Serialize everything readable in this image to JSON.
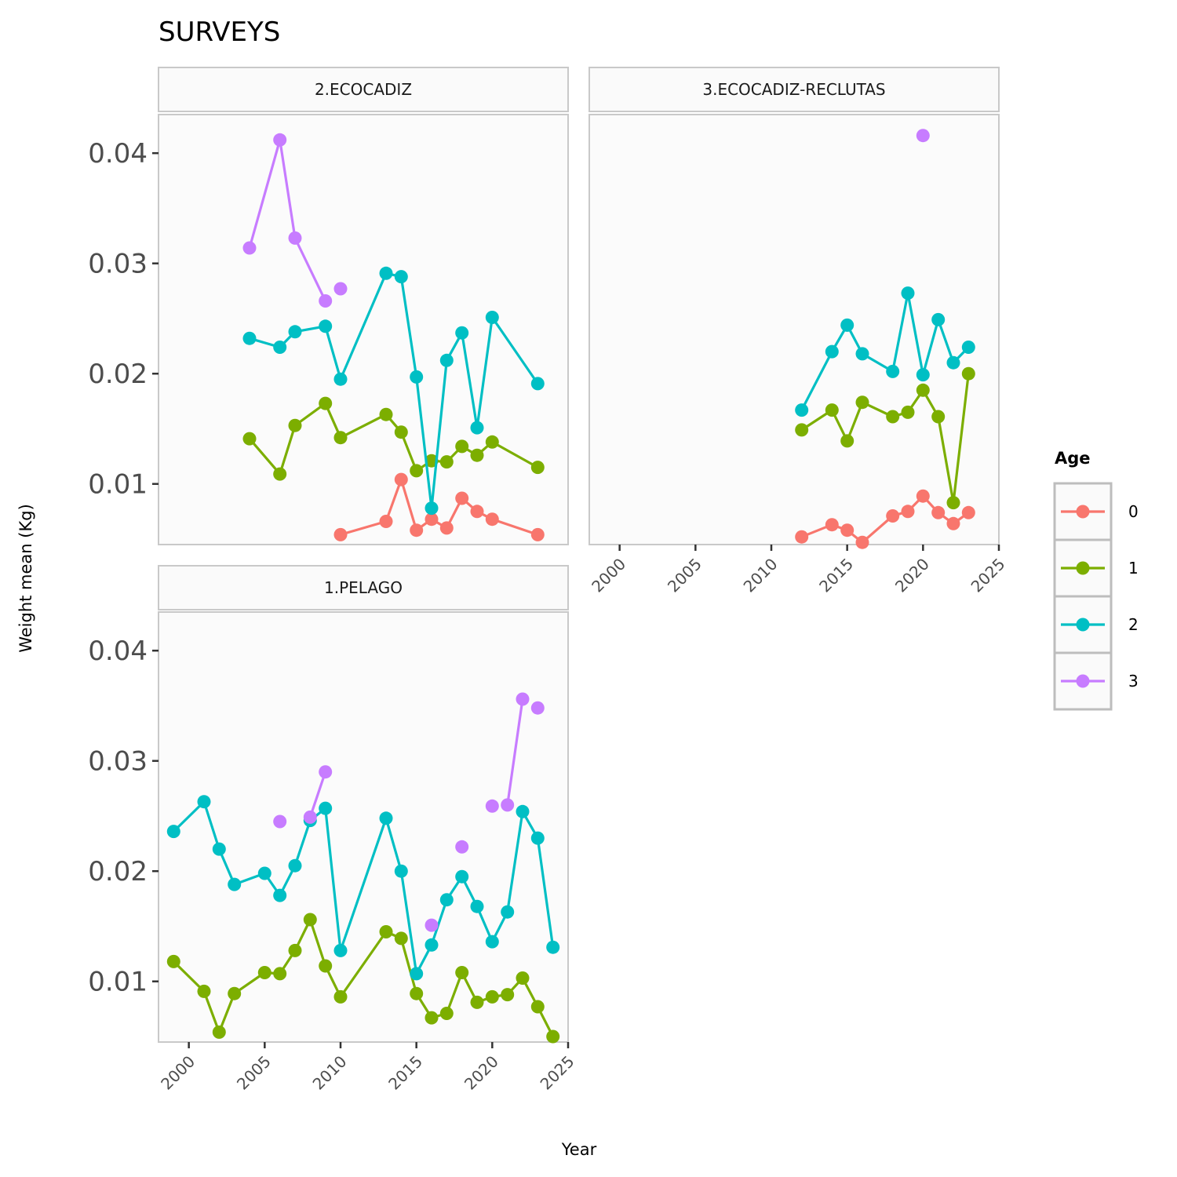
{
  "chart_data": {
    "type": "line",
    "title": "SURVEYS",
    "xlabel": "Year",
    "ylabel": "Weight mean (Kg)",
    "xlim": [
      1998,
      2025
    ],
    "ylim": [
      0.0045,
      0.0435
    ],
    "x_ticks": [
      2000,
      2005,
      2010,
      2015,
      2020,
      2025
    ],
    "y_ticks": [
      0.01,
      0.02,
      0.03,
      0.04
    ],
    "y_tick_labels": [
      "0.01",
      "0.02",
      "0.03",
      "0.04"
    ],
    "grid": false,
    "legend": {
      "title": "Age",
      "placement": "right",
      "entries": [
        {
          "label": "0",
          "color": "#F8766D"
        },
        {
          "label": "1",
          "color": "#7CAE00"
        },
        {
          "label": "2",
          "color": "#00BFC4"
        },
        {
          "label": "3",
          "color": "#C77CFF"
        }
      ]
    },
    "panels": [
      {
        "strip": "2.ECOCADIZ",
        "series": [
          {
            "name": "0",
            "x": [
              2010,
              2013,
              2014,
              2015,
              2016,
              2017,
              2018,
              2019,
              2020,
              2023
            ],
            "y": [
              0.0054,
              0.0066,
              0.0104,
              0.0058,
              0.0068,
              0.006,
              0.0087,
              0.0075,
              0.0068,
              0.0054
            ]
          },
          {
            "name": "1",
            "x": [
              2004,
              2006,
              2007,
              2009,
              2010,
              2013,
              2014,
              2015,
              2016,
              2017,
              2018,
              2019,
              2020,
              2023
            ],
            "y": [
              0.0141,
              0.0109,
              0.0153,
              0.0173,
              0.0142,
              0.0163,
              0.0147,
              0.0112,
              0.0121,
              0.012,
              0.0134,
              0.0126,
              0.0138,
              0.0115
            ]
          },
          {
            "name": "2",
            "x": [
              2004,
              2006,
              2007,
              2009,
              2010,
              2013,
              2014,
              2015,
              2016,
              2017,
              2018,
              2019,
              2020,
              2023
            ],
            "y": [
              0.0232,
              0.0224,
              0.0238,
              0.0243,
              0.0195,
              0.0291,
              0.0288,
              0.0197,
              0.0078,
              0.0212,
              0.0237,
              0.0151,
              0.0251,
              0.0191
            ]
          },
          {
            "name": "3",
            "x": [
              2004,
              2006,
              2007,
              2009,
              2010
            ],
            "y": [
              0.0314,
              0.0412,
              0.0323,
              0.0266,
              0.0277
            ],
            "segments": [
              [
                0,
                3
              ]
            ]
          }
        ]
      },
      {
        "strip": "3.ECOCADIZ-RECLUTAS",
        "series": [
          {
            "name": "0",
            "x": [
              2012,
              2014,
              2015,
              2016,
              2018,
              2019,
              2020,
              2021,
              2022,
              2023
            ],
            "y": [
              0.0052,
              0.0063,
              0.0058,
              0.0047,
              0.0071,
              0.0075,
              0.0089,
              0.0074,
              0.0064,
              0.0074
            ]
          },
          {
            "name": "1",
            "x": [
              2012,
              2014,
              2015,
              2016,
              2018,
              2019,
              2020,
              2021,
              2022,
              2023
            ],
            "y": [
              0.0149,
              0.0167,
              0.0139,
              0.0174,
              0.0161,
              0.0165,
              0.0185,
              0.0161,
              0.0083,
              0.02
            ]
          },
          {
            "name": "2",
            "x": [
              2012,
              2014,
              2015,
              2016,
              2018,
              2019,
              2020,
              2021,
              2022,
              2023
            ],
            "y": [
              0.0167,
              0.022,
              0.0244,
              0.0218,
              0.0202,
              0.0273,
              0.0199,
              0.0249,
              0.021,
              0.0224
            ]
          },
          {
            "name": "3",
            "x": [
              2020
            ],
            "y": [
              0.0416
            ],
            "segments": []
          }
        ]
      },
      {
        "strip": "1.PELAGO",
        "series": [
          {
            "name": "1",
            "x": [
              1999,
              2001,
              2002,
              2003,
              2005,
              2006,
              2007,
              2008,
              2009,
              2010,
              2013,
              2014,
              2015,
              2016,
              2017,
              2018,
              2019,
              2020,
              2021,
              2022,
              2023,
              2024
            ],
            "y": [
              0.0118,
              0.0091,
              0.0054,
              0.0089,
              0.0108,
              0.0107,
              0.0128,
              0.0156,
              0.0114,
              0.0086,
              0.0145,
              0.0139,
              0.0089,
              0.0067,
              0.0071,
              0.0108,
              0.0081,
              0.0086,
              0.0088,
              0.0103,
              0.0077,
              0.005
            ]
          },
          {
            "name": "2",
            "x": [
              1999,
              2001,
              2002,
              2003,
              2005,
              2006,
              2007,
              2008,
              2009,
              2010,
              2013,
              2014,
              2015,
              2016,
              2017,
              2018,
              2019,
              2020,
              2021,
              2022,
              2023,
              2024
            ],
            "y": [
              0.0236,
              0.0263,
              0.022,
              0.0188,
              0.0198,
              0.0178,
              0.0205,
              0.0246,
              0.0257,
              0.0128,
              0.0248,
              0.02,
              0.0107,
              0.0133,
              0.0174,
              0.0195,
              0.0168,
              0.0136,
              0.0163,
              0.0254,
              0.023,
              0.0131
            ]
          },
          {
            "name": "3",
            "x": [
              2006,
              2008,
              2009,
              2016,
              2018,
              2020,
              2021,
              2022,
              2023
            ],
            "y": [
              0.0245,
              0.0249,
              0.029,
              0.0151,
              0.0222,
              0.0259,
              0.026,
              0.0356,
              0.0348
            ],
            "segments": [
              [
                1,
                2
              ],
              [
                6,
                7
              ]
            ]
          }
        ]
      }
    ]
  }
}
